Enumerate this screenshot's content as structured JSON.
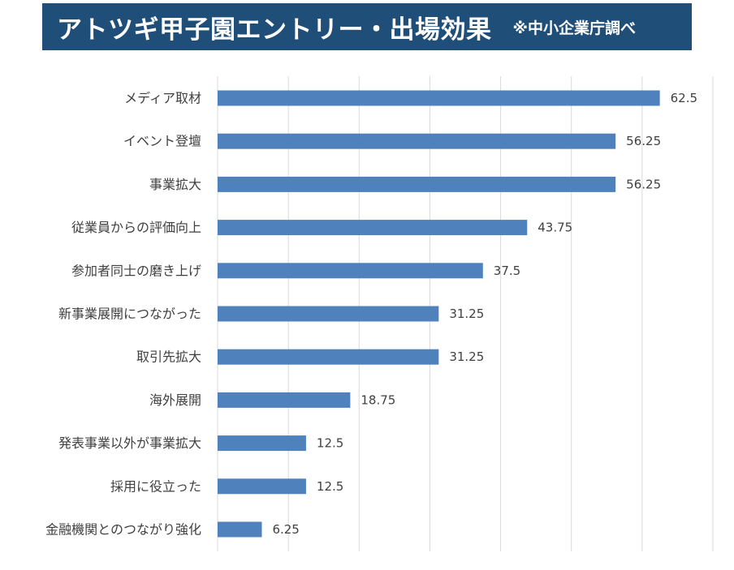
{
  "header": {
    "title": "アトツギ甲子園エントリー・出場効果",
    "note": "※中小企業庁調べ",
    "background_color": "#1f4e79",
    "text_color": "#ffffff"
  },
  "chart_data": {
    "type": "bar",
    "orientation": "horizontal",
    "title": "アトツギ甲子園エントリー・出場効果",
    "subtitle": "※中小企業庁調べ",
    "categories": [
      "メディア取材",
      "イベント登壇",
      "事業拡大",
      "従業員からの評価向上",
      "参加者同士の磨き上げ",
      "新事業展開につながった",
      "取引先拡大",
      "海外展開",
      "発表事業以外が事業拡大",
      "採用に役立った",
      "金融機関とのつながり強化"
    ],
    "values": [
      62.5,
      56.25,
      56.25,
      43.75,
      37.5,
      31.25,
      31.25,
      18.75,
      12.5,
      12.5,
      6.25
    ],
    "value_labels": [
      "62.5",
      "56.25",
      "56.25",
      "43.75",
      "37.5",
      "31.25",
      "31.25",
      "18.75",
      "12.5",
      "12.5",
      "6.25"
    ],
    "xlim": [
      0,
      70
    ],
    "grid_step": 10,
    "grid": true,
    "legend": "none",
    "bar_color": "#4f81bd",
    "grid_color": "#d9d9d9",
    "label_color": "#404040"
  }
}
